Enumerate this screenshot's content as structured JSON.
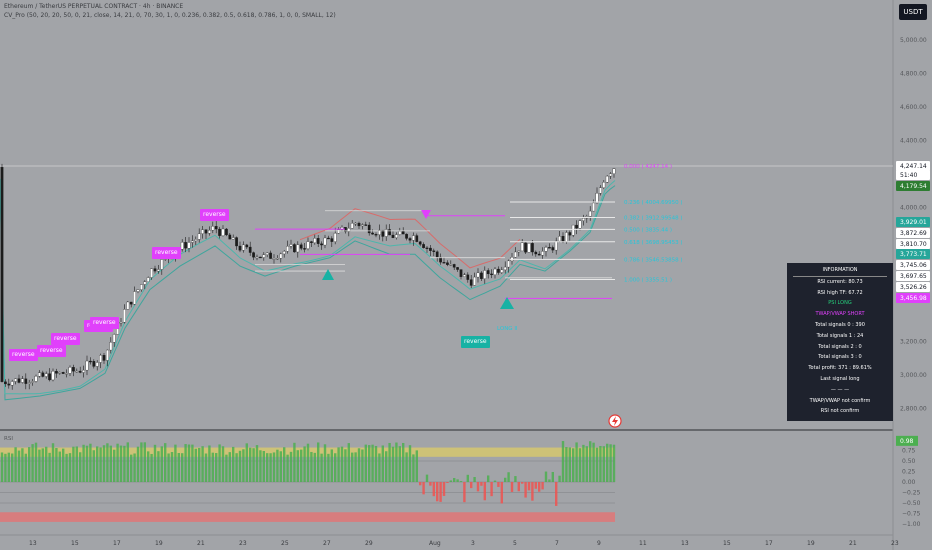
{
  "header": {
    "symbol_line": "Ethereum / TetherUS PERPETUAL CONTRACT · 4h · BINANCE",
    "indicator_line": "CV_Pro (50, 20, 20, 50, 0, 21, close, 14, 21, 0, 70, 30, 1, 0, 0.236, 0.382, 0.5, 0.618, 0.786, 1, 0, 0, SMALL, 12)"
  },
  "currency_button": "USDT",
  "colors": {
    "bg": "#a2a4a8",
    "up_candle": "#ffffff",
    "down_candle": "#1c1c1c",
    "signal_badge": "#e040fb",
    "long_badge": "#17b2a4",
    "fib_line": "#e8e8e8",
    "fib_label": "#26c6da",
    "ema_fast": "#26a69a",
    "ema_slow": "#ef5350",
    "rsi_up": "#4caf50",
    "rsi_down": "#ef5350"
  },
  "chart_data": [
    {
      "type": "candlestick",
      "price_axis_labels": [
        "5,000.00",
        "4,800.00",
        "4,600.00",
        "4,400.00",
        "4,000.00",
        "3,200.00",
        "3,000.00",
        "2,800.00"
      ],
      "time_axis_labels": [
        "13",
        "15",
        "17",
        "19",
        "21",
        "23",
        "25",
        "27",
        "29",
        "Aug",
        "3",
        "5",
        "7",
        "9",
        "11",
        "13",
        "15",
        "17",
        "19",
        "21",
        "23"
      ],
      "ylim": [
        2750,
        5080
      ],
      "price_badges": [
        {
          "value": "4,247.14",
          "bg": "#ffffff",
          "fg": "#131722"
        },
        {
          "value": "51:40",
          "bg": "#ffffff",
          "fg": "#131722"
        },
        {
          "value": "4,179.54",
          "bg": "#2e7d32",
          "fg": "#ffffff"
        },
        {
          "value": "3,929.01",
          "bg": "#26a69a",
          "fg": "#ffffff"
        },
        {
          "value": "3,872.69",
          "bg": "#ffffff",
          "fg": "#131722"
        },
        {
          "value": "3,810.70",
          "bg": "#ffffff",
          "fg": "#131722"
        },
        {
          "value": "3,773.71",
          "bg": "#26a69a",
          "fg": "#ffffff"
        },
        {
          "value": "3,745.06",
          "bg": "#ffffff",
          "fg": "#131722"
        },
        {
          "value": "3,697.65",
          "bg": "#ffffff",
          "fg": "#131722"
        },
        {
          "value": "3,526.26",
          "bg": "#ffffff",
          "fg": "#131722"
        },
        {
          "value": "3,456.98",
          "bg": "#e040fb",
          "fg": "#ffffff"
        }
      ],
      "fib_levels": [
        {
          "label": "0.236 ( 4004.69950 )",
          "price": 4032
        },
        {
          "label": "0.382 ( 3912.99548 )",
          "price": 3940
        },
        {
          "label": "0.500 ( 3835.44 )",
          "price": 3869
        },
        {
          "label": "0.618 ( 3698.95453 )",
          "price": 3795
        },
        {
          "label": "0.786 ( 3546.53858 )",
          "price": 3690
        },
        {
          "label": "1.000 ( 3355.51 )",
          "price": 3570
        }
      ],
      "top_level_label": "0.000 ( 4247.14 )",
      "signal_badges": [
        "reverse",
        "reverse",
        "reverse",
        "reverse",
        "reverse",
        "reverse",
        "reverse"
      ],
      "long_badge": "reverse",
      "long_label": "LONG Ⅱ"
    },
    {
      "type": "bar",
      "title": "RSI",
      "axis_labels": [
        "1.00",
        "0.75",
        "0.50",
        "0.25",
        "0.00",
        "−0.25",
        "−0.50",
        "−0.75",
        "−1.00"
      ],
      "current_badge": "0.98",
      "ylim": [
        -1,
        1
      ]
    }
  ],
  "info_panel": {
    "title": "INFORMATION",
    "rows": [
      {
        "text": "RSI current: 80.73",
        "tone": "white"
      },
      {
        "text": "RSI high TF: 67.72",
        "tone": "white"
      },
      {
        "text": "PSI LONG",
        "tone": "green"
      },
      {
        "text": "TWAP/VWAP SHORT",
        "tone": "pink"
      },
      {
        "text": "Total signals 0 : 390",
        "tone": "white"
      },
      {
        "text": "Total signals 1 : 24",
        "tone": "white"
      },
      {
        "text": "Total signals 2 : 0",
        "tone": "white"
      },
      {
        "text": "Total signals 3 : 0",
        "tone": "white"
      },
      {
        "text": "Total profit: 371 : 89.61%",
        "tone": "white"
      },
      {
        "text": "Last signal long",
        "tone": "white"
      },
      {
        "text": "— — —",
        "tone": "white"
      },
      {
        "text": "TWAP/VWAP not confirm",
        "tone": "white"
      },
      {
        "text": "RSI not confirm",
        "tone": "white"
      }
    ]
  }
}
